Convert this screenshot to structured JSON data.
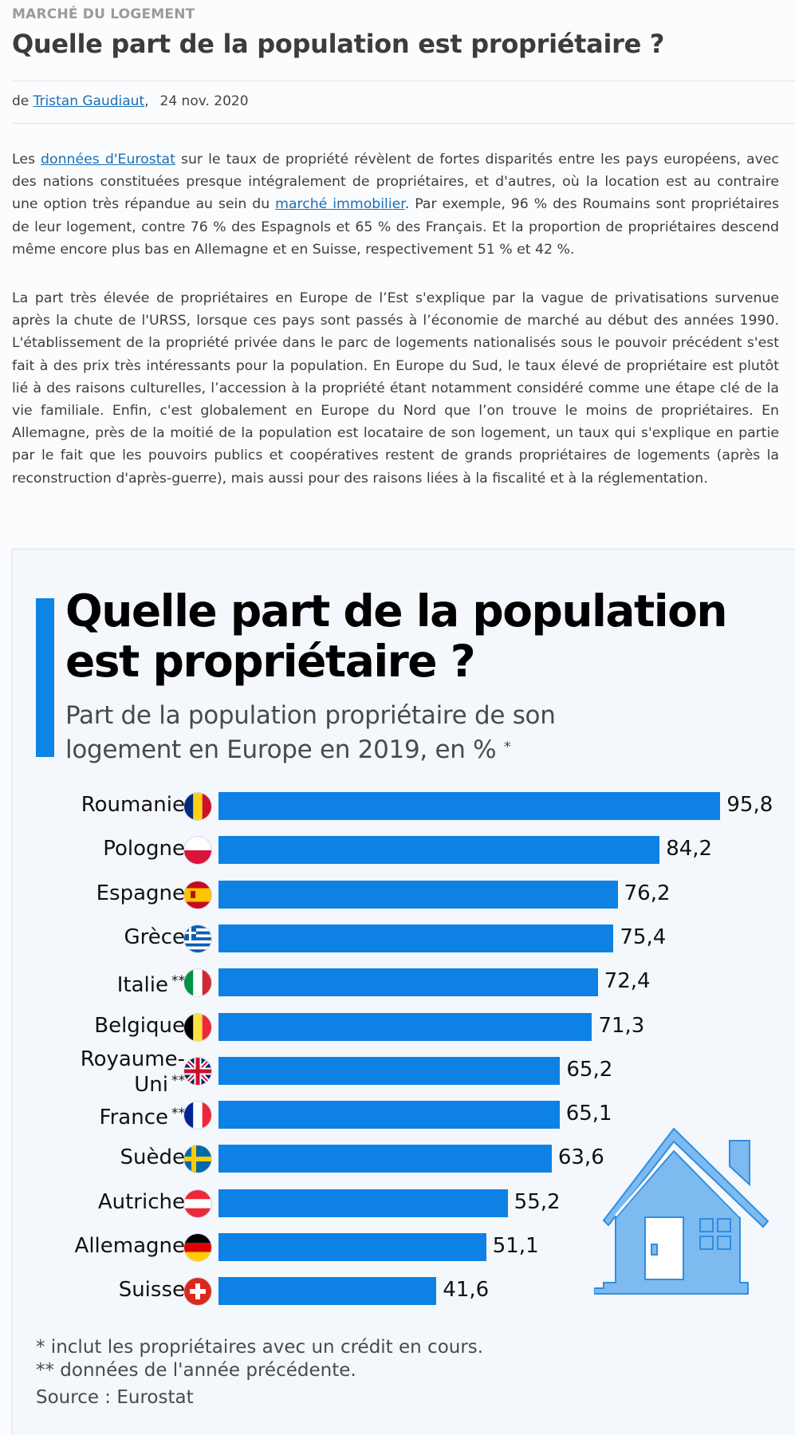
{
  "article": {
    "kicker": "MARCHÉ DU LOGEMENT",
    "title": "Quelle part de la population est propriétaire ?",
    "byline_prefix": "de ",
    "author": "Tristan Gaudiaut",
    "author_suffix": ",",
    "date": "24 nov. 2020",
    "p1": {
      "t1": "Les ",
      "link1": "données d'Eurostat",
      "t2": " sur le taux de propriété révèlent de fortes disparités entre les pays européens, avec des nations constituées presque intégralement de propriétaires, et d'autres, où la location est au contraire une option très répandue au sein du ",
      "link2": "marché immobilier",
      "t3": ". Par exemple, 96 % des Roumains sont propriétaires de leur logement, contre 76 % des Espagnols et 65 % des Français. Et la proportion de propriétaires descend même encore plus bas en Allemagne et en Suisse, respectivement 51 % et 42 %."
    },
    "p2": "La part très élevée de propriétaires en Europe de l’Est s'explique par la vague de privatisations survenue après la chute de l'URSS, lorsque ces pays sont passés à l’économie de marché au début des années 1990. L'établissement de la propriété privée dans le parc de logements nationalisés sous le pouvoir précédent s'est fait à des prix très intéressants pour la population. En Europe du Sud, le taux élevé de propriétaire est plutôt lié à des raisons culturelles, l’accession à la propriété étant notamment considéré comme une étape clé de la vie familiale. Enfin, c'est globalement en Europe du Nord que l’on trouve le moins de propriétaires. En Allemagne, près de la moitié de la population est locataire de son logement, un taux qui s'explique en partie par le fait que les pouvoirs publics et coopératives restent de grands propriétaires de logements (après la reconstruction d'après-guerre), mais aussi pour des raisons liées à la fiscalité et à la réglementation."
  },
  "chart_data": {
    "type": "bar",
    "orientation": "horizontal",
    "title_line1": "Quelle part de la population",
    "title_line2": "est propriétaire ?",
    "subtitle_line1": "Part de la population propriétaire de son",
    "subtitle_line2": "logement en Europe en 2019, en %",
    "subtitle_mark": "*",
    "categories": [
      "Roumanie",
      "Pologne",
      "Espagne",
      "Grèce",
      "Italie",
      "Belgique",
      "Royaume-Uni",
      "France",
      "Suède",
      "Autriche",
      "Allemagne",
      "Suisse"
    ],
    "category_lines": [
      [
        "Roumanie"
      ],
      [
        "Pologne"
      ],
      [
        "Espagne"
      ],
      [
        "Grèce"
      ],
      [
        "Italie"
      ],
      [
        "Belgique"
      ],
      [
        "Royaume-",
        "Uni"
      ],
      [
        "France"
      ],
      [
        "Suède"
      ],
      [
        "Autriche"
      ],
      [
        "Allemagne"
      ],
      [
        "Suisse"
      ]
    ],
    "category_marks": [
      "",
      "",
      "",
      "",
      "**",
      "",
      "**",
      "**",
      "",
      "",
      "",
      ""
    ],
    "flags": [
      "romania-flag",
      "poland-flag",
      "spain-flag",
      "greece-flag",
      "italy-flag",
      "belgium-flag",
      "uk-flag",
      "france-flag",
      "sweden-flag",
      "austria-flag",
      "germany-flag",
      "switzerland-flag"
    ],
    "values": [
      95.8,
      84.2,
      76.2,
      75.4,
      72.4,
      71.3,
      65.2,
      65.1,
      63.6,
      55.2,
      51.1,
      41.6
    ],
    "value_labels": [
      "95,8",
      "84,2",
      "76,2",
      "75,4",
      "72,4",
      "71,3",
      "65,2",
      "65,1",
      "63,6",
      "55,2",
      "51,1",
      "41,6"
    ],
    "xlim": [
      0,
      100
    ],
    "grid": false,
    "bar_color": "#0d82e4",
    "accent_color": "#0d84e6",
    "notes": [
      "*   inclut les propriétaires avec un crédit en cours.",
      "** données de l'année précédente."
    ],
    "source": "Source : Eurostat",
    "decoration": "house-icon"
  }
}
